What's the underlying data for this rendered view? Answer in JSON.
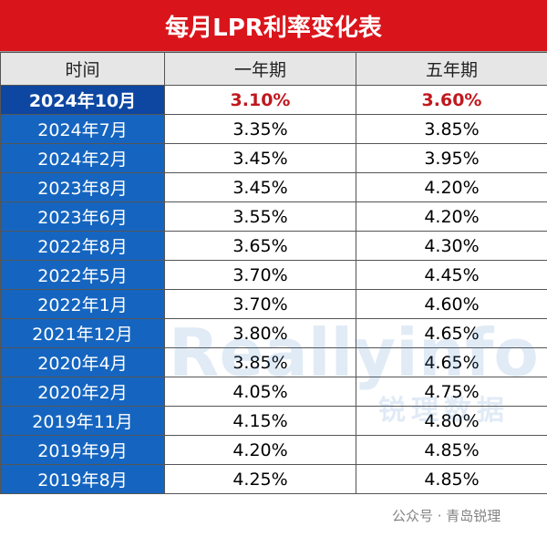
{
  "title": "每月LPR利率变化表",
  "table": {
    "headers": [
      "时间",
      "一年期",
      "五年期"
    ],
    "rows": [
      [
        "2024年10月",
        "3.10%",
        "3.60%"
      ],
      [
        "2024年7月",
        "3.35%",
        "3.85%"
      ],
      [
        "2024年2月",
        "3.45%",
        "3.95%"
      ],
      [
        "2023年8月",
        "3.45%",
        "4.20%"
      ],
      [
        "2023年6月",
        "3.55%",
        "4.20%"
      ],
      [
        "2022年8月",
        "3.65%",
        "4.30%"
      ],
      [
        "2022年5月",
        "3.70%",
        "4.45%"
      ],
      [
        "2022年1月",
        "3.70%",
        "4.60%"
      ],
      [
        "2021年12月",
        "3.80%",
        "4.65%"
      ],
      [
        "2020年4月",
        "3.85%",
        "4.65%"
      ],
      [
        "2020年2月",
        "4.05%",
        "4.75%"
      ],
      [
        "2019年11月",
        "4.15%",
        "4.80%"
      ],
      [
        "2019年9月",
        "4.20%",
        "4.85%"
      ],
      [
        "2019年8月",
        "4.25%",
        "4.85%"
      ]
    ]
  },
  "watermark": {
    "brand": "Reallyinfo",
    "brand_cn": "锐理数据",
    "source": "公众号 · 青岛锐理"
  }
}
